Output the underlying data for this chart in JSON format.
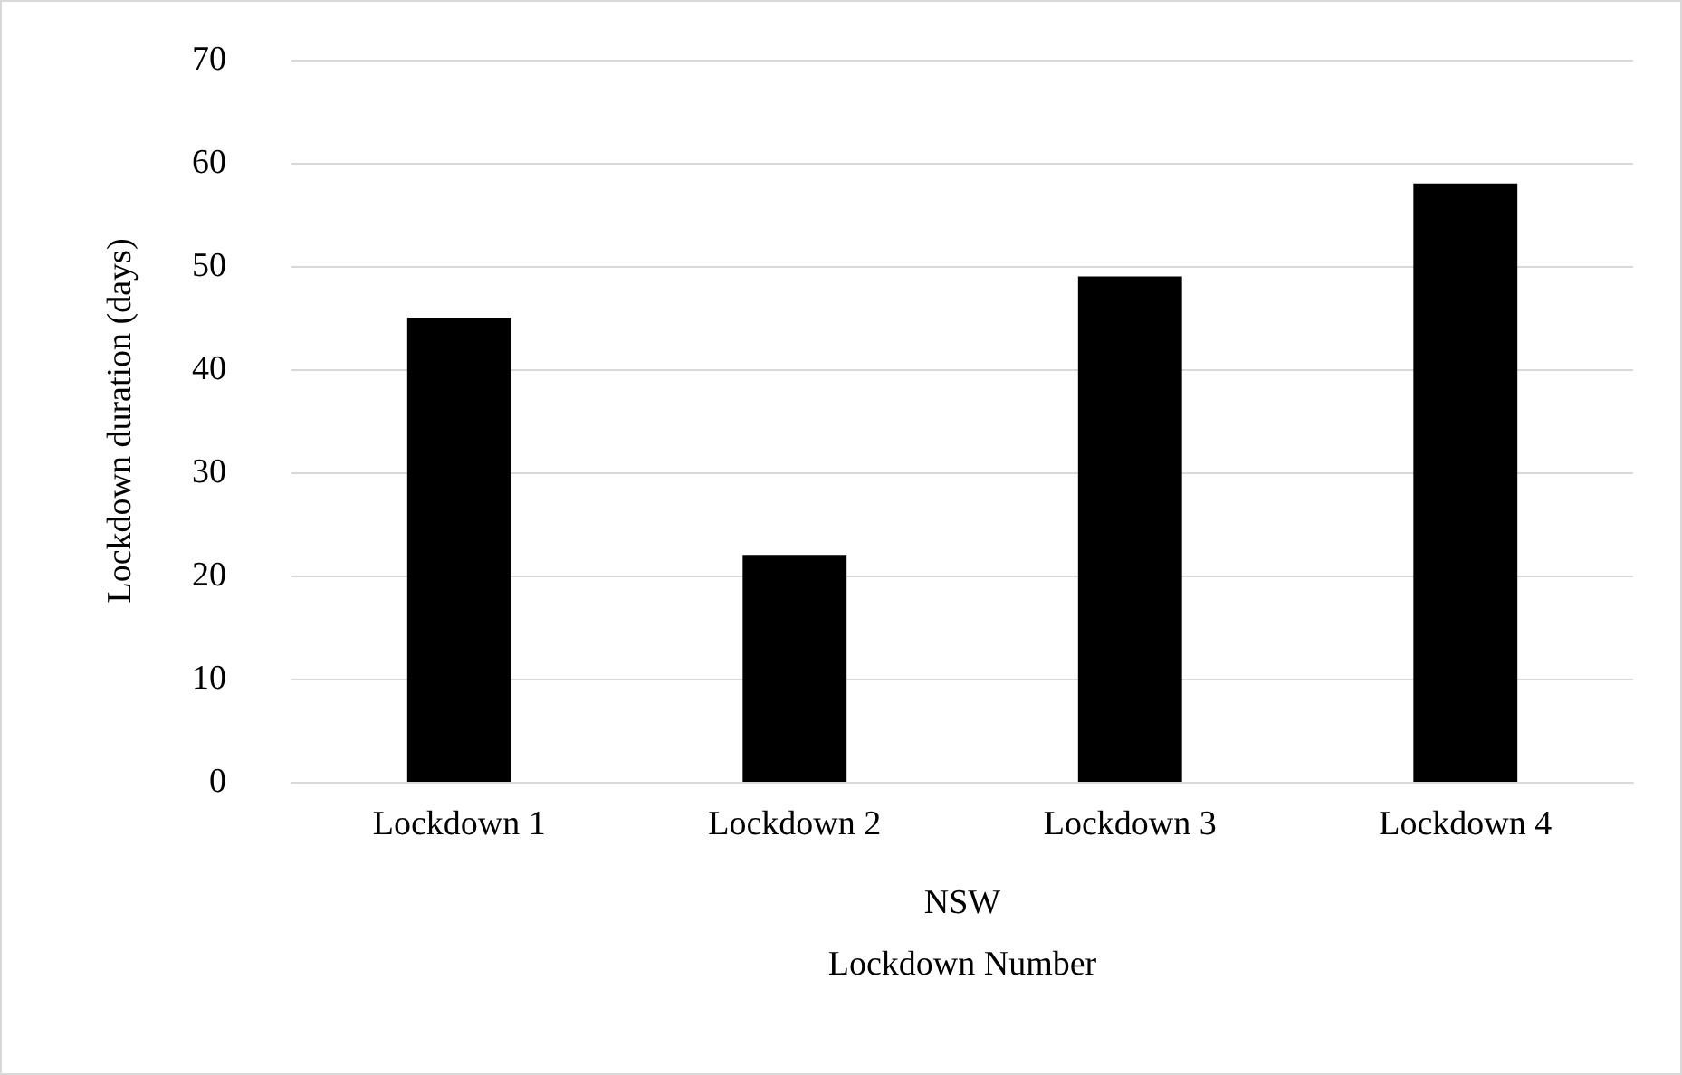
{
  "chart_data": {
    "type": "bar",
    "ylabel": "Lockdown duration (days)",
    "xlabel": "NSW\nLockdown Number",
    "categories": [
      "Lockdown 1",
      "Lockdown 2",
      "Lockdown 3",
      "Lockdown 4"
    ],
    "values": [
      45,
      22,
      49,
      58
    ],
    "color": "#000000",
    "ylim": [
      0,
      70
    ],
    "yticks": [
      0,
      10,
      20,
      30,
      40,
      50,
      60,
      70
    ],
    "grid": "y"
  }
}
